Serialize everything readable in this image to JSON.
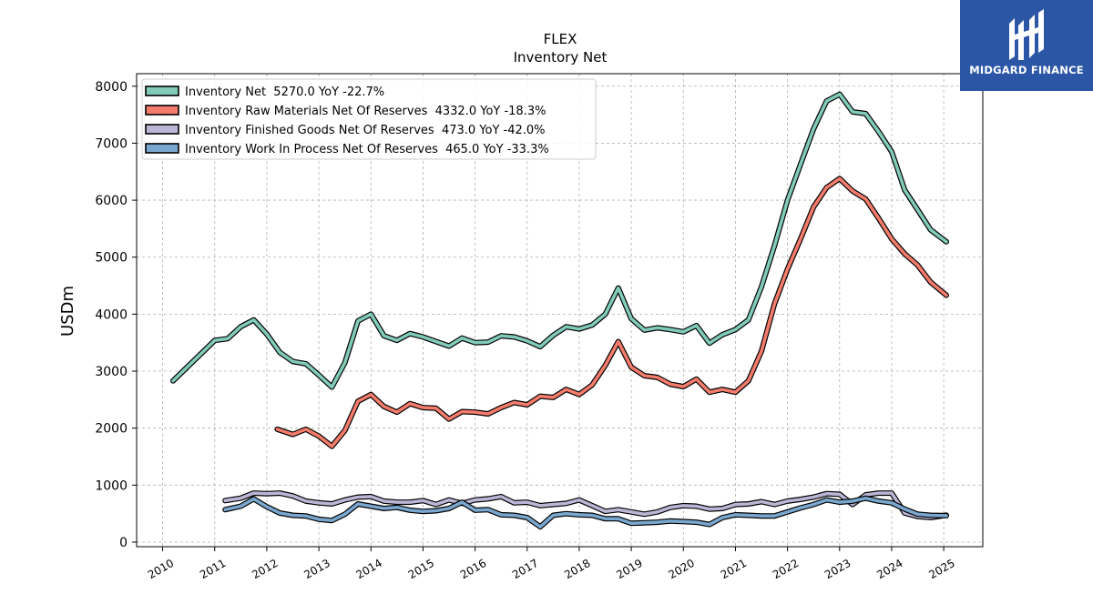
{
  "brand": {
    "name": "MIDGARD FINANCE",
    "icon": "midgard-logo-icon",
    "background": "#2b56a6"
  },
  "chart_data": {
    "type": "line",
    "title": "FLEX",
    "subtitle": "Inventory Net",
    "xlabel": "",
    "ylabel": "USDm",
    "xlim": [
      2009.5,
      2025.75
    ],
    "ylim": [
      -80,
      8220
    ],
    "x_ticks": [
      "2010",
      "2011",
      "2012",
      "2013",
      "2014",
      "2015",
      "2016",
      "2017",
      "2018",
      "2019",
      "2020",
      "2021",
      "2022",
      "2023",
      "2024",
      "2025"
    ],
    "y_ticks": [
      0,
      1000,
      2000,
      3000,
      4000,
      5000,
      6000,
      7000,
      8000
    ],
    "grid": true,
    "legend_position": "top-left",
    "series": [
      {
        "name": "Inventory Net  5270.0 YoY -22.7%",
        "color": "#82cbb9",
        "points": [
          [
            2010.2,
            2830
          ],
          [
            2011.0,
            3540
          ],
          [
            2011.25,
            3570
          ],
          [
            2011.5,
            3780
          ],
          [
            2011.75,
            3900
          ],
          [
            2012.0,
            3650
          ],
          [
            2012.25,
            3330
          ],
          [
            2012.5,
            3170
          ],
          [
            2012.75,
            3130
          ],
          [
            2013.0,
            2930
          ],
          [
            2013.25,
            2720
          ],
          [
            2013.5,
            3150
          ],
          [
            2013.75,
            3880
          ],
          [
            2014.0,
            4000
          ],
          [
            2014.25,
            3620
          ],
          [
            2014.5,
            3540
          ],
          [
            2014.75,
            3660
          ],
          [
            2015.0,
            3600
          ],
          [
            2015.25,
            3520
          ],
          [
            2015.5,
            3440
          ],
          [
            2015.75,
            3580
          ],
          [
            2016.0,
            3500
          ],
          [
            2016.25,
            3510
          ],
          [
            2016.5,
            3620
          ],
          [
            2016.75,
            3600
          ],
          [
            2017.0,
            3530
          ],
          [
            2017.25,
            3430
          ],
          [
            2017.5,
            3630
          ],
          [
            2017.75,
            3780
          ],
          [
            2018.0,
            3740
          ],
          [
            2018.25,
            3810
          ],
          [
            2018.5,
            4000
          ],
          [
            2018.75,
            4460
          ],
          [
            2019.0,
            3920
          ],
          [
            2019.25,
            3720
          ],
          [
            2019.5,
            3760
          ],
          [
            2019.75,
            3730
          ],
          [
            2020.0,
            3690
          ],
          [
            2020.25,
            3800
          ],
          [
            2020.5,
            3490
          ],
          [
            2020.75,
            3640
          ],
          [
            2021.0,
            3730
          ],
          [
            2021.25,
            3900
          ],
          [
            2021.5,
            4480
          ],
          [
            2021.75,
            5200
          ],
          [
            2022.0,
            6000
          ],
          [
            2022.25,
            6630
          ],
          [
            2022.5,
            7250
          ],
          [
            2022.75,
            7740
          ],
          [
            2023.0,
            7860
          ],
          [
            2023.25,
            7550
          ],
          [
            2023.5,
            7520
          ],
          [
            2023.75,
            7200
          ],
          [
            2024.0,
            6850
          ],
          [
            2024.25,
            6180
          ],
          [
            2024.5,
            5830
          ],
          [
            2024.75,
            5480
          ],
          [
            2025.05,
            5270
          ]
        ]
      },
      {
        "name": "Inventory Raw Materials Net Of Reserves  4332.0 YoY -18.3%",
        "color": "#f47c6c",
        "points": [
          [
            2012.2,
            1980
          ],
          [
            2012.5,
            1890
          ],
          [
            2012.75,
            1980
          ],
          [
            2013.0,
            1860
          ],
          [
            2013.25,
            1680
          ],
          [
            2013.5,
            1960
          ],
          [
            2013.75,
            2470
          ],
          [
            2014.0,
            2590
          ],
          [
            2014.25,
            2380
          ],
          [
            2014.5,
            2280
          ],
          [
            2014.75,
            2430
          ],
          [
            2015.0,
            2360
          ],
          [
            2015.25,
            2350
          ],
          [
            2015.5,
            2160
          ],
          [
            2015.75,
            2290
          ],
          [
            2016.0,
            2280
          ],
          [
            2016.25,
            2250
          ],
          [
            2016.5,
            2360
          ],
          [
            2016.75,
            2450
          ],
          [
            2017.0,
            2410
          ],
          [
            2017.25,
            2560
          ],
          [
            2017.5,
            2540
          ],
          [
            2017.75,
            2680
          ],
          [
            2018.0,
            2590
          ],
          [
            2018.25,
            2760
          ],
          [
            2018.5,
            3100
          ],
          [
            2018.75,
            3520
          ],
          [
            2019.0,
            3070
          ],
          [
            2019.25,
            2920
          ],
          [
            2019.5,
            2890
          ],
          [
            2019.75,
            2770
          ],
          [
            2020.0,
            2730
          ],
          [
            2020.25,
            2860
          ],
          [
            2020.5,
            2630
          ],
          [
            2020.75,
            2680
          ],
          [
            2021.0,
            2630
          ],
          [
            2021.25,
            2830
          ],
          [
            2021.5,
            3350
          ],
          [
            2021.75,
            4180
          ],
          [
            2022.0,
            4790
          ],
          [
            2022.25,
            5320
          ],
          [
            2022.5,
            5880
          ],
          [
            2022.75,
            6220
          ],
          [
            2023.0,
            6380
          ],
          [
            2023.25,
            6160
          ],
          [
            2023.5,
            6020
          ],
          [
            2023.75,
            5680
          ],
          [
            2024.0,
            5320
          ],
          [
            2024.25,
            5060
          ],
          [
            2024.5,
            4860
          ],
          [
            2024.75,
            4560
          ],
          [
            2025.05,
            4332
          ]
        ]
      },
      {
        "name": "Inventory Finished Goods Net Of Reserves  473.0 YoY -42.0%",
        "color": "#bcb6d6",
        "points": [
          [
            2011.2,
            730
          ],
          [
            2011.5,
            770
          ],
          [
            2011.75,
            860
          ],
          [
            2012.0,
            850
          ],
          [
            2012.25,
            860
          ],
          [
            2012.5,
            810
          ],
          [
            2012.75,
            720
          ],
          [
            2013.0,
            690
          ],
          [
            2013.25,
            670
          ],
          [
            2013.5,
            740
          ],
          [
            2013.75,
            790
          ],
          [
            2014.0,
            800
          ],
          [
            2014.25,
            720
          ],
          [
            2014.5,
            700
          ],
          [
            2014.75,
            700
          ],
          [
            2015.0,
            730
          ],
          [
            2015.25,
            660
          ],
          [
            2015.5,
            740
          ],
          [
            2015.75,
            680
          ],
          [
            2016.0,
            740
          ],
          [
            2016.25,
            760
          ],
          [
            2016.5,
            800
          ],
          [
            2016.75,
            690
          ],
          [
            2017.0,
            700
          ],
          [
            2017.25,
            640
          ],
          [
            2017.5,
            660
          ],
          [
            2017.75,
            680
          ],
          [
            2018.0,
            740
          ],
          [
            2018.25,
            640
          ],
          [
            2018.5,
            540
          ],
          [
            2018.75,
            570
          ],
          [
            2019.0,
            530
          ],
          [
            2019.25,
            490
          ],
          [
            2019.5,
            530
          ],
          [
            2019.75,
            610
          ],
          [
            2020.0,
            640
          ],
          [
            2020.25,
            630
          ],
          [
            2020.5,
            580
          ],
          [
            2020.75,
            590
          ],
          [
            2021.0,
            660
          ],
          [
            2021.25,
            670
          ],
          [
            2021.5,
            710
          ],
          [
            2021.75,
            660
          ],
          [
            2022.0,
            720
          ],
          [
            2022.25,
            750
          ],
          [
            2022.5,
            790
          ],
          [
            2022.75,
            850
          ],
          [
            2023.0,
            840
          ],
          [
            2023.25,
            660
          ],
          [
            2023.5,
            830
          ],
          [
            2023.75,
            860
          ],
          [
            2024.0,
            860
          ],
          [
            2024.25,
            510
          ],
          [
            2024.5,
            450
          ],
          [
            2024.75,
            430
          ],
          [
            2025.05,
            473
          ]
        ]
      },
      {
        "name": "Inventory Work In Process Net Of Reserves  465.0 YoY -33.3%",
        "color": "#7aa7cf",
        "points": [
          [
            2011.2,
            570
          ],
          [
            2011.5,
            630
          ],
          [
            2011.75,
            760
          ],
          [
            2012.0,
            620
          ],
          [
            2012.25,
            510
          ],
          [
            2012.5,
            470
          ],
          [
            2012.75,
            460
          ],
          [
            2013.0,
            400
          ],
          [
            2013.25,
            380
          ],
          [
            2013.5,
            490
          ],
          [
            2013.75,
            670
          ],
          [
            2014.0,
            630
          ],
          [
            2014.25,
            590
          ],
          [
            2014.5,
            610
          ],
          [
            2014.75,
            560
          ],
          [
            2015.0,
            540
          ],
          [
            2015.25,
            550
          ],
          [
            2015.5,
            590
          ],
          [
            2015.75,
            700
          ],
          [
            2016.0,
            560
          ],
          [
            2016.25,
            570
          ],
          [
            2016.5,
            480
          ],
          [
            2016.75,
            470
          ],
          [
            2017.0,
            430
          ],
          [
            2017.25,
            270
          ],
          [
            2017.5,
            470
          ],
          [
            2017.75,
            500
          ],
          [
            2018.0,
            480
          ],
          [
            2018.25,
            470
          ],
          [
            2018.5,
            410
          ],
          [
            2018.75,
            410
          ],
          [
            2019.0,
            330
          ],
          [
            2019.25,
            340
          ],
          [
            2019.5,
            350
          ],
          [
            2019.75,
            370
          ],
          [
            2020.0,
            360
          ],
          [
            2020.25,
            350
          ],
          [
            2020.5,
            310
          ],
          [
            2020.75,
            430
          ],
          [
            2021.0,
            480
          ],
          [
            2021.25,
            470
          ],
          [
            2021.5,
            460
          ],
          [
            2021.75,
            460
          ],
          [
            2022.0,
            530
          ],
          [
            2022.25,
            600
          ],
          [
            2022.5,
            660
          ],
          [
            2022.75,
            740
          ],
          [
            2023.0,
            700
          ],
          [
            2023.25,
            720
          ],
          [
            2023.5,
            770
          ],
          [
            2023.75,
            720
          ],
          [
            2024.0,
            690
          ],
          [
            2024.25,
            580
          ],
          [
            2024.5,
            490
          ],
          [
            2024.75,
            470
          ],
          [
            2025.05,
            465
          ]
        ]
      }
    ]
  }
}
